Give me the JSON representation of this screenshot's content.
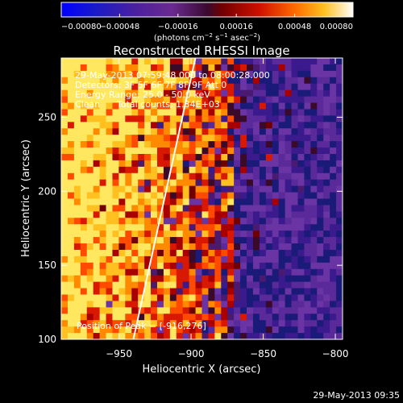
{
  "chart_data": {
    "type": "heatmap",
    "title": "Reconstructed RHESSI Image",
    "xlabel": "Heliocentric X (arcsec)",
    "ylabel": "Heliocentric Y (arcsec)",
    "xlim": [
      -990,
      -795
    ],
    "ylim": [
      100,
      290
    ],
    "x_ticks": [
      -950,
      -900,
      -850,
      -800
    ],
    "x_tick_labels": [
      "−950",
      "−900",
      "−850",
      "−800"
    ],
    "y_ticks": [
      100,
      150,
      200,
      250
    ],
    "y_tick_labels": [
      "100",
      "150",
      "200",
      "250"
    ],
    "colorbar": {
      "range": [
        -0.0008,
        0.0008
      ],
      "ticks": [
        -0.0008,
        -0.00048,
        -0.00016,
        0.00016,
        0.00048,
        0.0008
      ],
      "tick_labels": [
        "−0.00080",
        "−0.00048",
        "−0.00016",
        "0.00016",
        "0.00048",
        "0.00080"
      ],
      "unit_base": "(photons cm",
      "unit_exp1": "−2",
      "unit_mid": " s",
      "unit_exp2": "−1",
      "unit_end": " asec",
      "unit_exp3": "−2",
      "unit_close": ")"
    },
    "limb_line": [
      [
        -940,
        100
      ],
      [
        -897,
        290
      ]
    ],
    "peak": [
      -916,
      276
    ],
    "annotations": {
      "time": "29-May-2013 07:59:48.000 to 08:00:28.000",
      "detectors": "Detectors: 3F 5F 6F 7F 8F 9F Att 0",
      "energy": "Energy Range: 25.0 - 50.0 keV",
      "clean_label": "Clean",
      "counts": "Total counts: 1.34E+03",
      "peak_text": "Position of Peak = [-916,276]"
    }
  },
  "footer_timestamp": "29-May-2013 09:35"
}
